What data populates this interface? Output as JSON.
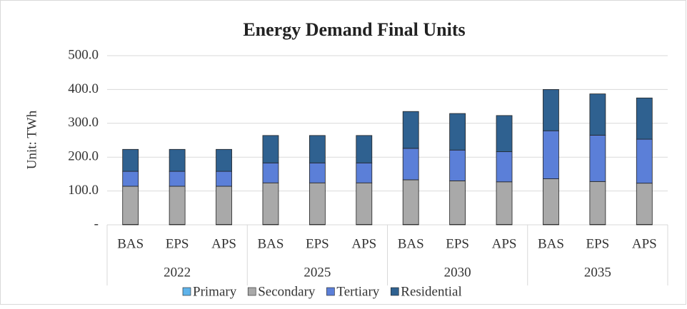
{
  "chart_data": {
    "type": "stacked_bar",
    "title": "Energy Demand Final Units",
    "y_label": "Unit:  TWh",
    "categories": [
      "BAS",
      "EPS",
      "APS",
      "BAS",
      "EPS",
      "APS",
      "BAS",
      "EPS",
      "APS",
      "BAS",
      "EPS",
      "APS"
    ],
    "category_groups": [
      "2022",
      "2025",
      "2030",
      "2035"
    ],
    "series": [
      {
        "name": "Primary",
        "color": "#5fb3ea",
        "values": [
          1,
          1,
          1,
          1,
          1,
          1,
          1,
          1,
          1,
          1,
          1,
          1
        ]
      },
      {
        "name": "Secondary",
        "color": "#a9a9a9",
        "values": [
          113,
          113,
          113,
          123,
          123,
          123,
          132,
          129,
          126,
          135,
          127,
          122
        ]
      },
      {
        "name": "Tertiary",
        "color": "#5b7fd8",
        "values": [
          44,
          44,
          44,
          59,
          59,
          59,
          93,
          91,
          89,
          142,
          137,
          130
        ]
      },
      {
        "name": "Residential",
        "color": "#2f6190",
        "values": [
          65,
          65,
          65,
          81,
          81,
          81,
          109,
          108,
          107,
          122,
          122,
          122
        ]
      }
    ],
    "ylim": [
      0,
      500
    ],
    "yticks": [
      {
        "value": 0,
        "label": "-"
      },
      {
        "value": 100,
        "label": "100.0"
      },
      {
        "value": 200,
        "label": "200.0"
      },
      {
        "value": 300,
        "label": "300.0"
      },
      {
        "value": 400,
        "label": "400.0"
      },
      {
        "value": 500,
        "label": "500.0"
      }
    ],
    "grid": true
  }
}
